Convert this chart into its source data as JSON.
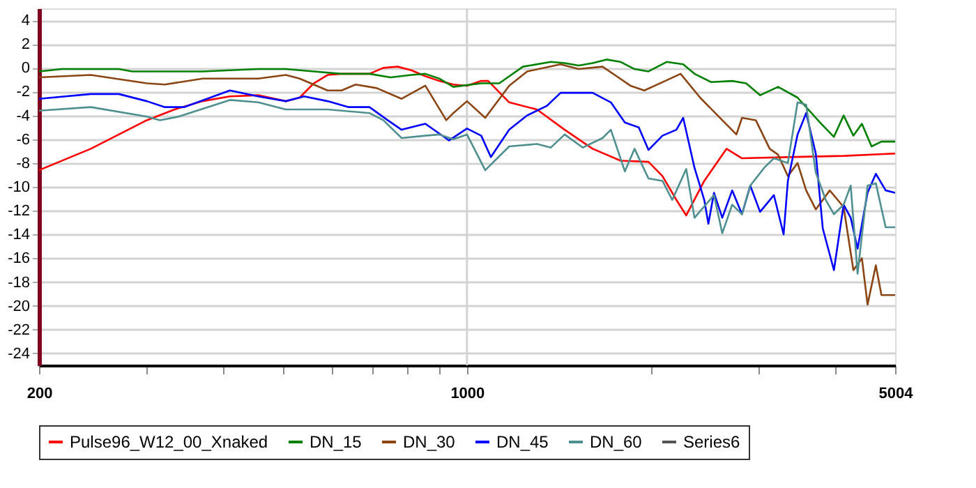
{
  "chart_data": {
    "type": "line",
    "log": "x",
    "xlim": [
      200,
      5004
    ],
    "ylim": [
      -25,
      5
    ],
    "xticks": [
      200,
      {
        "value": 300,
        "label": null
      },
      {
        "value": 400,
        "label": null
      },
      {
        "value": 500,
        "label": null
      },
      {
        "value": 600,
        "label": null
      },
      {
        "value": 700,
        "label": null
      },
      {
        "value": 800,
        "label": null
      },
      {
        "value": 900,
        "label": null
      },
      1000,
      {
        "value": 2000,
        "label": null
      },
      {
        "value": 3000,
        "label": null
      },
      {
        "value": 4000,
        "label": null
      },
      5004
    ],
    "yticks": [
      -24,
      -22,
      -20,
      -18,
      -16,
      -14,
      -12,
      -10,
      -8,
      -6,
      -4,
      -2,
      0,
      2,
      4
    ],
    "grid": "y",
    "ref_lines": [
      {
        "axis": "x",
        "value": 1000,
        "color": "#d3d3d3",
        "line_style": "solid"
      }
    ],
    "legend": "bottom",
    "line_style": "solid",
    "marker": "none",
    "series": [
      {
        "name": "Pulse96_W12_00_Xnaked",
        "color": "#ff0000",
        "x": [
          200,
          243,
          270,
          300,
          333,
          370,
          410,
          456,
          506,
          533,
          562,
          592,
          624,
          658,
          693,
          730,
          770,
          811,
          855,
          901,
          950,
          1000,
          1055,
          1083,
          1172,
          1301,
          1444,
          1604,
          1782,
          1979,
          2086,
          2198,
          2281,
          2441,
          2654,
          2813,
          3343,
          4123,
          5004
        ],
        "values": [
          -8.6,
          -6.8,
          -5.6,
          -4.4,
          -3.5,
          -2.8,
          -2.4,
          -2.3,
          -2.8,
          -2.5,
          -1.3,
          -0.6,
          -0.5,
          -0.5,
          -0.5,
          0,
          0.1,
          -0.2,
          -0.7,
          -1.1,
          -1.4,
          -1.5,
          -1.1,
          -1.1,
          -2.9,
          -3.5,
          -5.2,
          -6.8,
          -7.8,
          -7.9,
          -9.1,
          -11.1,
          -12.4,
          -9.5,
          -6.8,
          -7.6,
          -7.5,
          -7.4,
          -7.2
        ]
      },
      {
        "name": "DN_15",
        "color": "#008000",
        "x": [
          200,
          218,
          270,
          284,
          370,
          456,
          506,
          562,
          624,
          693,
          750,
          811,
          855,
          901,
          950,
          1055,
          1129,
          1234,
          1371,
          1444,
          1522,
          1604,
          1690,
          1782,
          1878,
          1979,
          2119,
          2255,
          2353,
          2506,
          2711,
          2857,
          3011,
          3222,
          3467,
          3774,
          3975,
          4123,
          4277,
          4416,
          4579,
          4753,
          5004
        ],
        "values": [
          -0.3,
          -0.1,
          -0.1,
          -0.3,
          -0.3,
          -0.1,
          -0.1,
          -0.3,
          -0.5,
          -0.5,
          -0.8,
          -0.6,
          -0.5,
          -0.9,
          -1.6,
          -1.3,
          -1.3,
          0.1,
          0.5,
          0.4,
          0.2,
          0.4,
          0.7,
          0.5,
          -0.1,
          -0.3,
          0.5,
          0.3,
          -0.5,
          -1.2,
          -1.1,
          -1.3,
          -2.3,
          -1.6,
          -2.5,
          -4.6,
          -5.8,
          -4.0,
          -5.7,
          -4.7,
          -6.6,
          -6.2,
          -6.2
        ]
      },
      {
        "name": "DN_30",
        "color": "#8b4513",
        "x": [
          200,
          243,
          300,
          321,
          370,
          456,
          506,
          533,
          592,
          624,
          658,
          712,
          782,
          855,
          925,
          950,
          1000,
          1071,
          1172,
          1254,
          1422,
          1522,
          1665,
          1755,
          1849,
          1948,
          2086,
          2233,
          2403,
          2612,
          2755,
          2813,
          2963,
          3122,
          3222,
          3343,
          3467,
          3581,
          3713,
          3913,
          4123,
          4277,
          4416,
          4511,
          4654,
          4753,
          5004
        ],
        "values": [
          -0.8,
          -0.6,
          -1.3,
          -1.4,
          -0.9,
          -0.9,
          -0.6,
          -0.9,
          -1.9,
          -1.9,
          -1.4,
          -1.7,
          -2.6,
          -1.5,
          -4.4,
          -3.8,
          -2.8,
          -4.2,
          -1.5,
          -0.3,
          0.3,
          -0.1,
          0.1,
          -0.7,
          -1.5,
          -1.9,
          -1.2,
          -0.5,
          -2.5,
          -4.4,
          -5.6,
          -4.2,
          -4.4,
          -6.8,
          -7.3,
          -9.1,
          -8.0,
          -10.3,
          -11.9,
          -10.3,
          -11.7,
          -17.0,
          -16.0,
          -19.9,
          -16.6,
          -19.1,
          -19.1
        ]
      },
      {
        "name": "DN_45",
        "color": "#0000ff",
        "x": [
          200,
          243,
          270,
          300,
          321,
          345,
          410,
          456,
          506,
          542,
          592,
          641,
          693,
          742,
          782,
          855,
          935,
          1000,
          1055,
          1094,
          1172,
          1254,
          1350,
          1422,
          1604,
          1718,
          1811,
          1908,
          1979,
          2086,
          2198,
          2255,
          2353,
          2441,
          2479,
          2532,
          2612,
          2711,
          2813,
          2902,
          3011,
          3172,
          3290,
          3343,
          3467,
          3581,
          3713,
          3812,
          3975,
          4123,
          4234,
          4345,
          4511,
          4654,
          4829,
          5004
        ],
        "values": [
          -2.6,
          -2.2,
          -2.2,
          -2.8,
          -3.3,
          -3.3,
          -1.9,
          -2.4,
          -2.8,
          -2.4,
          -2.8,
          -3.3,
          -3.3,
          -4.4,
          -5.2,
          -4.7,
          -6.1,
          -5.1,
          -5.7,
          -7.5,
          -5.2,
          -4.0,
          -3.2,
          -2.1,
          -2.1,
          -2.9,
          -4.6,
          -5.0,
          -6.9,
          -5.7,
          -5.2,
          -4.2,
          -8.4,
          -11.1,
          -13.1,
          -10.5,
          -12.6,
          -10.3,
          -12.3,
          -9.9,
          -12.1,
          -10.7,
          -14.0,
          -9.5,
          -5.6,
          -3.8,
          -7.2,
          -13.5,
          -17.0,
          -11.5,
          -12.6,
          -15.2,
          -10.5,
          -8.9,
          -10.3,
          -10.5
        ]
      },
      {
        "name": "DN_60",
        "color": "#4f8f8f",
        "x": [
          200,
          243,
          300,
          315,
          338,
          410,
          456,
          506,
          592,
          693,
          730,
          782,
          855,
          901,
          950,
          1000,
          1071,
          1172,
          1301,
          1371,
          1444,
          1546,
          1665,
          1718,
          1811,
          1878,
          1979,
          2086,
          2164,
          2281,
          2353,
          2532,
          2612,
          2711,
          2813,
          2902,
          3058,
          3172,
          3343,
          3467,
          3581,
          3713,
          3855,
          3975,
          4123,
          4234,
          4345,
          4511,
          4654,
          4829,
          5004
        ],
        "values": [
          -3.6,
          -3.3,
          -4.1,
          -4.4,
          -4.1,
          -2.7,
          -2.9,
          -3.5,
          -3.5,
          -3.8,
          -4.4,
          -5.9,
          -5.7,
          -5.6,
          -6.0,
          -5.6,
          -8.6,
          -6.6,
          -6.4,
          -6.7,
          -5.6,
          -6.7,
          -5.9,
          -5.2,
          -8.7,
          -6.8,
          -9.3,
          -9.5,
          -11.1,
          -8.5,
          -12.6,
          -10.7,
          -13.9,
          -11.5,
          -12.3,
          -9.9,
          -8.4,
          -7.6,
          -8.0,
          -2.9,
          -3.1,
          -8.8,
          -11.1,
          -12.3,
          -11.5,
          -9.9,
          -17.3,
          -9.9,
          -9.7,
          -13.4,
          -13.4
        ]
      },
      {
        "name": "Series6",
        "color": "#555555"
      }
    ]
  }
}
